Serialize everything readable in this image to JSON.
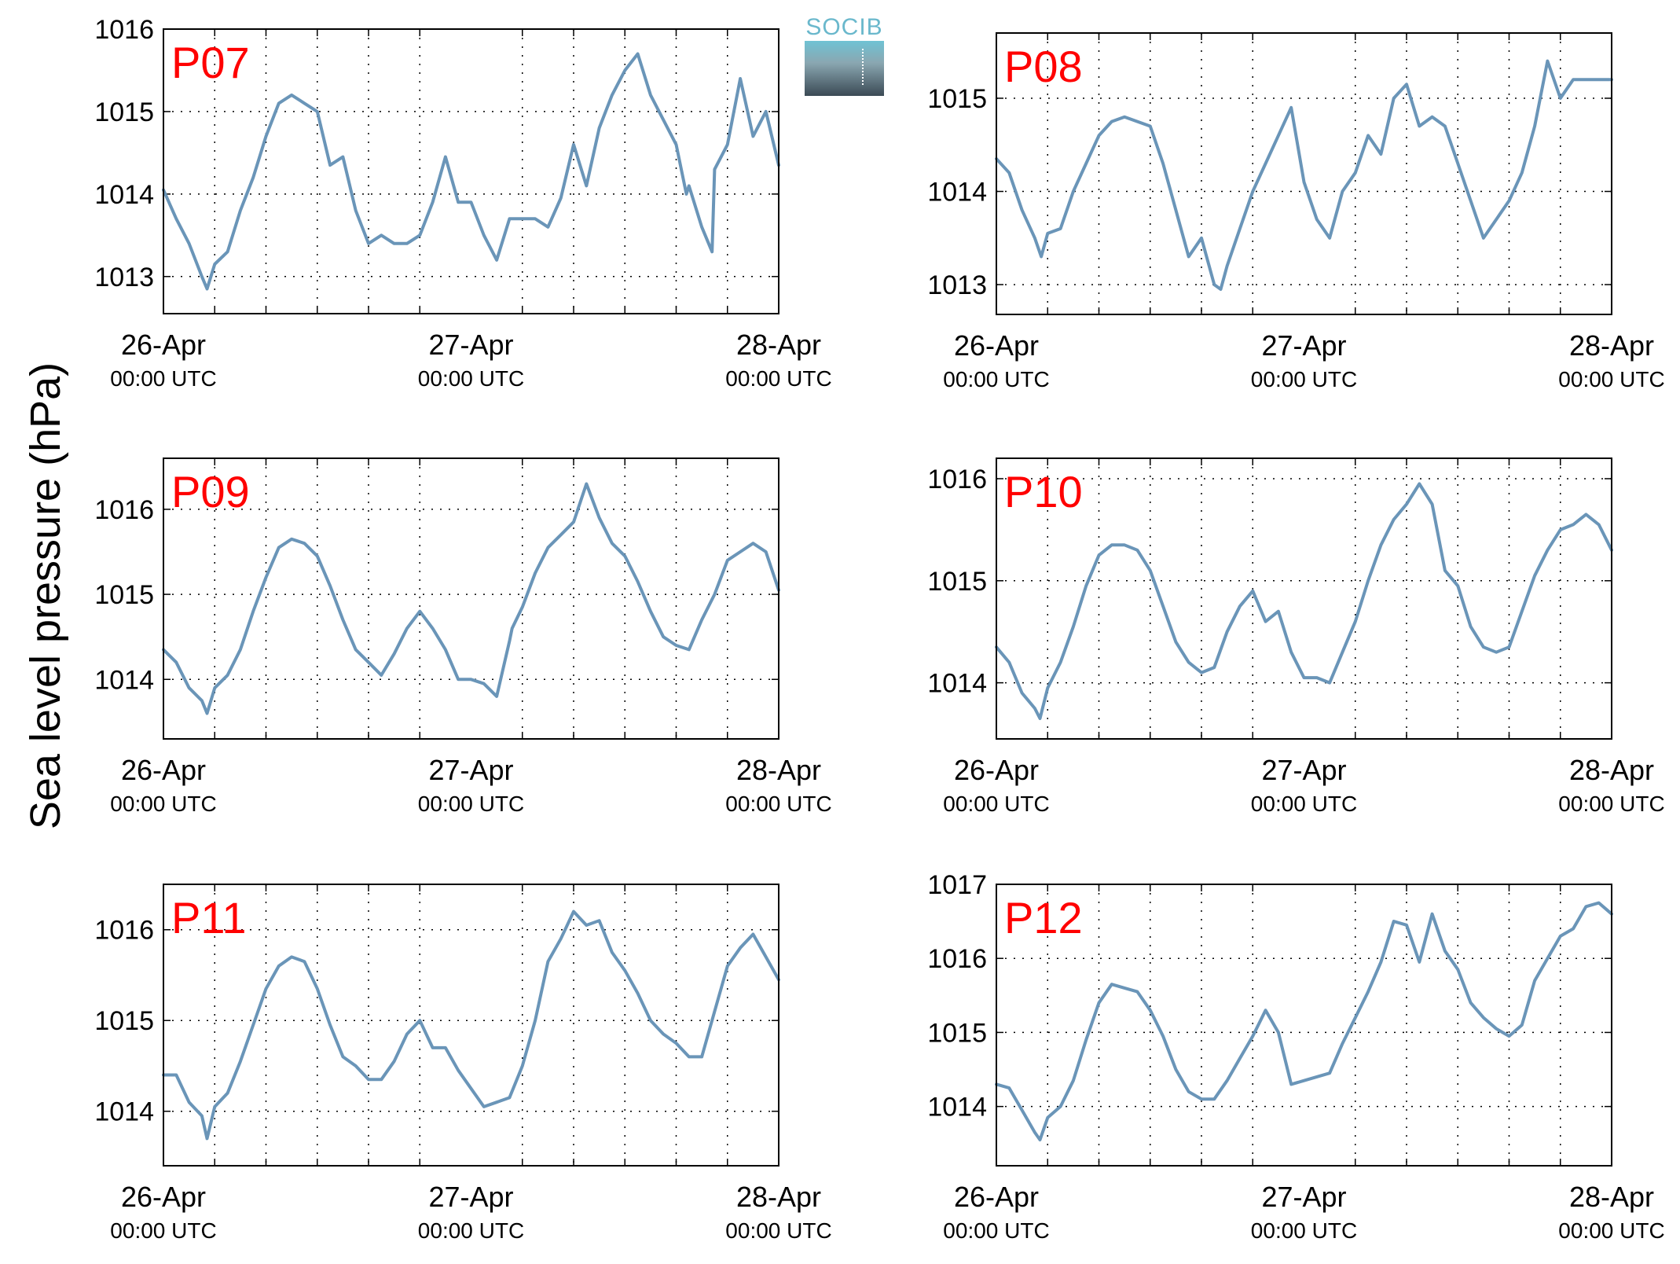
{
  "ylabel": "Sea level pressure (hPa)",
  "logo_text": "SOCIB",
  "colors": {
    "line": "#6a95b8",
    "panel_label": "#ff0000",
    "axis": "#000000",
    "grid": "#000000"
  },
  "chart_data": [
    {
      "type": "line",
      "title": "P07",
      "xlim": [
        "2014-04-26 00:00",
        "2014-04-28 00:00"
      ],
      "xticks": [
        {
          "line1": "26-Apr",
          "line2": "00:00 UTC",
          "hour": 0
        },
        {
          "line1": "27-Apr",
          "line2": "00:00 UTC",
          "hour": 24
        },
        {
          "line1": "28-Apr",
          "line2": "00:00 UTC",
          "hour": 48
        }
      ],
      "ylim": [
        1012.55,
        1016.0
      ],
      "yticks": [
        1013,
        1014,
        1015,
        1016
      ],
      "series": [
        {
          "x_hours": [
            0,
            1,
            2,
            3,
            3.4,
            4,
            5,
            6,
            7,
            8,
            9,
            10,
            11,
            12,
            13,
            14,
            15,
            16,
            17,
            18,
            19,
            20,
            21,
            22,
            23,
            24,
            25,
            26,
            27,
            28,
            29,
            30,
            31,
            32,
            33,
            34,
            35,
            36,
            37,
            38,
            39,
            40,
            40.8,
            41,
            42,
            42.8,
            43,
            44,
            45,
            46,
            47,
            48
          ],
          "values": [
            1014.05,
            1013.7,
            1013.4,
            1013.0,
            1012.85,
            1013.15,
            1013.3,
            1013.8,
            1014.2,
            1014.7,
            1015.1,
            1015.2,
            1015.1,
            1015.0,
            1014.35,
            1014.45,
            1013.8,
            1013.4,
            1013.5,
            1013.4,
            1013.4,
            1013.5,
            1013.9,
            1014.45,
            1013.9,
            1013.9,
            1013.5,
            1013.2,
            1013.7,
            1013.7,
            1013.7,
            1013.6,
            1013.95,
            1014.6,
            1014.1,
            1014.8,
            1015.2,
            1015.5,
            1015.7,
            1015.2,
            1014.9,
            1014.6,
            1014.0,
            1014.1,
            1013.6,
            1013.3,
            1014.3,
            1014.6,
            1015.4,
            1014.7,
            1015.0,
            1014.35
          ]
        }
      ]
    },
    {
      "type": "line",
      "title": "P08",
      "xlim": [
        "2014-04-26 00:00",
        "2014-04-28 00:00"
      ],
      "xticks": [
        {
          "line1": "26-Apr",
          "line2": "00:00 UTC",
          "hour": 0
        },
        {
          "line1": "27-Apr",
          "line2": "00:00 UTC",
          "hour": 24
        },
        {
          "line1": "28-Apr",
          "line2": "00:00 UTC",
          "hour": 48
        }
      ],
      "ylim": [
        1012.68,
        1015.7
      ],
      "yticks": [
        1013,
        1014,
        1015
      ],
      "series": [
        {
          "x_hours": [
            0,
            1,
            2,
            3,
            3.5,
            4,
            5,
            6,
            7,
            8,
            9,
            10,
            11,
            12,
            13,
            14,
            15,
            16,
            17,
            17.5,
            18,
            19,
            20,
            21,
            22,
            23,
            24,
            25,
            26,
            27,
            28,
            29,
            30,
            31,
            32,
            33,
            34,
            35,
            36,
            37,
            38,
            39,
            40,
            41,
            42,
            43,
            44,
            45,
            46,
            47,
            48
          ],
          "values": [
            1014.35,
            1014.2,
            1013.8,
            1013.5,
            1013.3,
            1013.55,
            1013.6,
            1014.0,
            1014.3,
            1014.6,
            1014.75,
            1014.8,
            1014.75,
            1014.7,
            1014.3,
            1013.8,
            1013.3,
            1013.5,
            1013.0,
            1012.95,
            1013.2,
            1013.6,
            1014.0,
            1014.3,
            1014.6,
            1014.9,
            1014.1,
            1013.7,
            1013.5,
            1014.0,
            1014.2,
            1014.6,
            1014.4,
            1015.0,
            1015.15,
            1014.7,
            1014.8,
            1014.7,
            1014.3,
            1013.9,
            1013.5,
            1013.7,
            1013.9,
            1014.2,
            1014.7,
            1015.4,
            1015.0,
            1015.2,
            1015.2,
            1015.2,
            1015.2
          ]
        }
      ]
    },
    {
      "type": "line",
      "title": "P09",
      "xlim": [
        "2014-04-26 00:00",
        "2014-04-28 00:00"
      ],
      "xticks": [
        {
          "line1": "26-Apr",
          "line2": "00:00 UTC",
          "hour": 0
        },
        {
          "line1": "27-Apr",
          "line2": "00:00 UTC",
          "hour": 24
        },
        {
          "line1": "28-Apr",
          "line2": "00:00 UTC",
          "hour": 48
        }
      ],
      "ylim": [
        1013.3,
        1016.6
      ],
      "yticks": [
        1014,
        1015,
        1016
      ],
      "series": [
        {
          "x_hours": [
            0,
            1,
            2,
            3,
            3.4,
            4,
            5,
            6,
            7,
            8,
            9,
            10,
            11,
            12,
            13,
            14,
            15,
            16,
            17,
            18,
            19,
            20,
            21,
            22,
            23,
            24,
            25,
            26,
            27,
            27.2,
            28,
            29,
            30,
            31,
            32,
            33,
            34,
            35,
            36,
            37,
            38,
            39,
            40,
            41,
            42,
            43,
            44,
            45,
            46,
            47,
            48
          ],
          "values": [
            1014.35,
            1014.2,
            1013.9,
            1013.75,
            1013.6,
            1013.9,
            1014.05,
            1014.35,
            1014.8,
            1015.2,
            1015.55,
            1015.65,
            1015.6,
            1015.45,
            1015.1,
            1014.7,
            1014.35,
            1014.2,
            1014.05,
            1014.3,
            1014.6,
            1014.8,
            1014.6,
            1014.35,
            1014.0,
            1014.0,
            1013.95,
            1013.8,
            1014.45,
            1014.6,
            1014.85,
            1015.25,
            1015.55,
            1015.7,
            1015.85,
            1016.3,
            1015.9,
            1015.6,
            1015.45,
            1015.15,
            1014.8,
            1014.5,
            1014.4,
            1014.35,
            1014.7,
            1015.0,
            1015.4,
            1015.5,
            1015.6,
            1015.5,
            1015.05
          ]
        }
      ]
    },
    {
      "type": "line",
      "title": "P10",
      "xlim": [
        "2014-04-26 00:00",
        "2014-04-28 00:00"
      ],
      "xticks": [
        {
          "line1": "26-Apr",
          "line2": "00:00 UTC",
          "hour": 0
        },
        {
          "line1": "27-Apr",
          "line2": "00:00 UTC",
          "hour": 24
        },
        {
          "line1": "28-Apr",
          "line2": "00:00 UTC",
          "hour": 48
        }
      ],
      "ylim": [
        1013.45,
        1016.2
      ],
      "yticks": [
        1014,
        1015,
        1016
      ],
      "series": [
        {
          "x_hours": [
            0,
            1,
            2,
            3,
            3.4,
            4,
            5,
            6,
            7,
            8,
            9,
            10,
            11,
            12,
            13,
            14,
            15,
            16,
            17,
            18,
            19,
            20,
            21,
            22,
            23,
            24,
            25,
            26,
            27,
            28,
            29,
            30,
            31,
            32,
            33,
            34,
            35,
            36,
            37,
            38,
            39,
            40,
            41,
            42,
            43,
            44,
            45,
            46,
            47,
            48
          ],
          "values": [
            1014.35,
            1014.2,
            1013.9,
            1013.75,
            1013.65,
            1013.95,
            1014.2,
            1014.55,
            1014.95,
            1015.25,
            1015.35,
            1015.35,
            1015.3,
            1015.1,
            1014.75,
            1014.4,
            1014.2,
            1014.1,
            1014.15,
            1014.5,
            1014.75,
            1014.9,
            1014.6,
            1014.7,
            1014.3,
            1014.05,
            1014.05,
            1014.0,
            1014.3,
            1014.6,
            1015.0,
            1015.35,
            1015.6,
            1015.75,
            1015.95,
            1015.75,
            1015.1,
            1014.95,
            1014.55,
            1014.35,
            1014.3,
            1014.35,
            1014.7,
            1015.05,
            1015.3,
            1015.5,
            1015.55,
            1015.65,
            1015.55,
            1015.3
          ]
        }
      ]
    },
    {
      "type": "line",
      "title": "P11",
      "xlim": [
        "2014-04-26 00:00",
        "2014-04-28 00:00"
      ],
      "xticks": [
        {
          "line1": "26-Apr",
          "line2": "00:00 UTC",
          "hour": 0
        },
        {
          "line1": "27-Apr",
          "line2": "00:00 UTC",
          "hour": 24
        },
        {
          "line1": "28-Apr",
          "line2": "00:00 UTC",
          "hour": 48
        }
      ],
      "ylim": [
        1013.4,
        1016.5
      ],
      "yticks": [
        1014,
        1015,
        1016
      ],
      "series": [
        {
          "x_hours": [
            0,
            1,
            2,
            3,
            3.4,
            4,
            5,
            6,
            7,
            8,
            9,
            10,
            11,
            12,
            13,
            14,
            15,
            16,
            17,
            18,
            19,
            20,
            21,
            22,
            23,
            24,
            25,
            26,
            27,
            28,
            29,
            30,
            31,
            32,
            33,
            34,
            35,
            36,
            37,
            38,
            39,
            40,
            41,
            42,
            43,
            44,
            45,
            46,
            47,
            48
          ],
          "values": [
            1014.4,
            1014.4,
            1014.1,
            1013.95,
            1013.7,
            1014.05,
            1014.2,
            1014.55,
            1014.95,
            1015.35,
            1015.6,
            1015.7,
            1015.65,
            1015.35,
            1014.95,
            1014.6,
            1014.5,
            1014.35,
            1014.35,
            1014.55,
            1014.85,
            1015.0,
            1014.7,
            1014.7,
            1014.45,
            1014.25,
            1014.05,
            1014.1,
            1014.15,
            1014.5,
            1015.0,
            1015.65,
            1015.9,
            1016.2,
            1016.05,
            1016.1,
            1015.75,
            1015.55,
            1015.3,
            1015.0,
            1014.85,
            1014.75,
            1014.6,
            1014.6,
            1015.1,
            1015.6,
            1015.8,
            1015.95,
            1015.7,
            1015.45
          ]
        }
      ]
    },
    {
      "type": "line",
      "title": "P12",
      "xlim": [
        "2014-04-26 00:00",
        "2014-04-28 00:00"
      ],
      "xticks": [
        {
          "line1": "26-Apr",
          "line2": "00:00 UTC",
          "hour": 0
        },
        {
          "line1": "27-Apr",
          "line2": "00:00 UTC",
          "hour": 24
        },
        {
          "line1": "28-Apr",
          "line2": "00:00 UTC",
          "hour": 48
        }
      ],
      "ylim": [
        1013.2,
        1017.0
      ],
      "yticks": [
        1014,
        1015,
        1016,
        1017
      ],
      "series": [
        {
          "x_hours": [
            0,
            1,
            2,
            3,
            3.4,
            4,
            5,
            6,
            7,
            8,
            9,
            10,
            11,
            12,
            13,
            14,
            15,
            16,
            17,
            18,
            19,
            20,
            21,
            22,
            23,
            24,
            25,
            26,
            27,
            28,
            29,
            30,
            31,
            32,
            33,
            34,
            35,
            36,
            37,
            38,
            39,
            40,
            41,
            42,
            43,
            44,
            45,
            46,
            47,
            48
          ],
          "values": [
            1014.3,
            1014.25,
            1013.95,
            1013.65,
            1013.55,
            1013.85,
            1014.0,
            1014.35,
            1014.9,
            1015.4,
            1015.65,
            1015.6,
            1015.55,
            1015.3,
            1014.95,
            1014.5,
            1014.2,
            1014.1,
            1014.1,
            1014.35,
            1014.65,
            1014.95,
            1015.3,
            1015.0,
            1014.3,
            1014.35,
            1014.4,
            1014.45,
            1014.85,
            1015.2,
            1015.55,
            1015.95,
            1016.5,
            1016.45,
            1015.95,
            1016.6,
            1016.1,
            1015.85,
            1015.4,
            1015.2,
            1015.05,
            1014.95,
            1015.1,
            1015.7,
            1016.0,
            1016.3,
            1016.4,
            1016.7,
            1016.75,
            1016.6
          ]
        }
      ]
    }
  ]
}
